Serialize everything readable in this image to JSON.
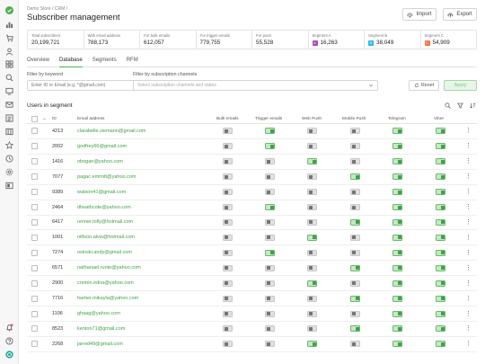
{
  "sidebar": {
    "icons": [
      "logo-icon",
      "chart-icon",
      "cart-icon",
      "user-icon",
      "grid-icon",
      "search-icon",
      "monitor-icon",
      "mail-icon",
      "list-icon",
      "layers-icon",
      "star-icon",
      "clock-icon",
      "settings-icon",
      "screen-icon"
    ],
    "bottom_icons": [
      "bell-icon",
      "help-icon",
      "account-icon"
    ],
    "accent": "#4caf50"
  },
  "header": {
    "breadcrumb": "Demo Store / CRM /",
    "title": "Subscriber management",
    "import_label": "Import",
    "export_label": "Export"
  },
  "stats": [
    {
      "label": "Total subscribers",
      "value": "20,199,721"
    },
    {
      "label": "With email address",
      "value": "788,173"
    },
    {
      "label": "For bulk emails",
      "value": "612,057"
    },
    {
      "label": "For trigger emails",
      "value": "779,755"
    },
    {
      "label": "For push",
      "value": "55,528"
    },
    {
      "label": "Segment A",
      "value": "16,263",
      "badge": "A",
      "color": "#ab47bc"
    },
    {
      "label": "Segment B",
      "value": "38,049",
      "badge": "B",
      "color": "#29b6f6"
    },
    {
      "label": "Segment C",
      "value": "54,909",
      "badge": "C",
      "color": "#ff7043"
    }
  ],
  "tabs": [
    "Overview",
    "Database",
    "Segments",
    "RFM"
  ],
  "active_tab": "Database",
  "filters": {
    "keyword_label": "Filter by keyword",
    "keyword_placeholder": "Enter ID or Email (e.g. *@gmail.com)",
    "channels_label": "Filter by subscription channels",
    "channels_placeholder": "Select subscription channels and states",
    "reset_label": "Reset",
    "apply_label": "Apply"
  },
  "segment_title": "Users in segment",
  "table": {
    "columns": [
      "ID",
      "Email address",
      "Bulk emails",
      "Trigger emails",
      "Web Push",
      "Mobile Push",
      "Telegram",
      "Viber"
    ],
    "rows": [
      {
        "id": "4213",
        "email": "clarabelle.ziemann@gmail.com",
        "toggles": [
          false,
          true,
          false,
          false,
          true,
          true
        ]
      },
      {
        "id": "2002",
        "email": "godfrey66@gmail.com",
        "toggles": [
          false,
          true,
          false,
          false,
          true,
          true
        ]
      },
      {
        "id": "1416",
        "email": "obogan@yahoo.com",
        "toggles": [
          false,
          false,
          true,
          false,
          true,
          true
        ]
      },
      {
        "id": "7077",
        "email": "pagac.emmitt@yahoo.com",
        "toggles": [
          false,
          false,
          false,
          true,
          true,
          true
        ]
      },
      {
        "id": "9389",
        "email": "watson41@gmail.com",
        "toggles": [
          false,
          false,
          false,
          false,
          true,
          true
        ]
      },
      {
        "id": "2464",
        "email": "dheathcote@yahoo.com",
        "toggles": [
          false,
          true,
          false,
          false,
          true,
          true
        ]
      },
      {
        "id": "6417",
        "email": "renner.tolly@hotmail.com",
        "toggles": [
          false,
          false,
          false,
          true,
          true,
          true
        ]
      },
      {
        "id": "1001",
        "email": "nitfson.alvis@hotmail.com",
        "toggles": [
          false,
          false,
          true,
          false,
          true,
          true
        ]
      },
      {
        "id": "7274",
        "email": "osinski.andy@gmail.com",
        "toggles": [
          false,
          true,
          false,
          false,
          true,
          true
        ]
      },
      {
        "id": "6571",
        "email": "nathanael.runte@yahoo.com",
        "toggles": [
          false,
          false,
          false,
          true,
          true,
          true
        ]
      },
      {
        "id": "2900",
        "email": "cremin.edna@yahoo.com",
        "toggles": [
          false,
          false,
          true,
          false,
          true,
          true
        ]
      },
      {
        "id": "7716",
        "email": "harber.mikayla@yahoo.com",
        "toggles": [
          false,
          false,
          false,
          true,
          true,
          true
        ]
      },
      {
        "id": "1106",
        "email": "ghaag@yahoo.com",
        "toggles": [
          false,
          false,
          false,
          false,
          true,
          true
        ]
      },
      {
        "id": "8523",
        "email": "kenton71@gmail.com",
        "toggles": [
          false,
          false,
          false,
          true,
          true,
          true
        ]
      },
      {
        "id": "2268",
        "email": "jarred49@gmail.com",
        "toggles": [
          false,
          false,
          true,
          false,
          true,
          true
        ]
      }
    ]
  }
}
